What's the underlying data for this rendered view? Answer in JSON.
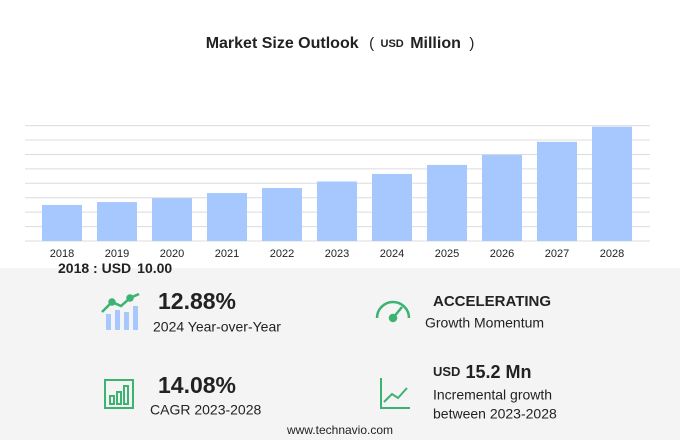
{
  "chart_data": {
    "type": "bar",
    "title": "Market Size Outlook",
    "title_unit_open": "(",
    "title_unit_currency": "USD",
    "title_unit": "Million",
    "title_unit_close": ")",
    "categories": [
      "2018",
      "2019",
      "2020",
      "2021",
      "2022",
      "2023",
      "2024",
      "2025",
      "2026",
      "2027",
      "2028"
    ],
    "values": [
      10.0,
      10.8,
      11.9,
      13.3,
      14.7,
      16.5,
      18.6,
      21.1,
      23.9,
      27.5,
      31.7
    ],
    "color": "#a6c8ff",
    "ylim": [
      0,
      33
    ],
    "yticks": [
      0,
      4,
      8,
      12,
      16,
      20,
      24,
      28,
      32
    ],
    "grid": true,
    "base_label": "2018 : USD",
    "base_value": "10.00"
  },
  "kpis": [
    {
      "value": "12.88%",
      "label": "2024 Year-over-Year"
    },
    {
      "value": "ACCELERATING",
      "label": "Growth Momentum"
    },
    {
      "value": "14.08%",
      "label": "CAGR 2023-2028"
    },
    {
      "value_currency": "USD",
      "value": "15.2 Mn",
      "label": "Incremental growth",
      "label2": "between 2023-2028"
    }
  ],
  "footer": "www.technavio.com"
}
